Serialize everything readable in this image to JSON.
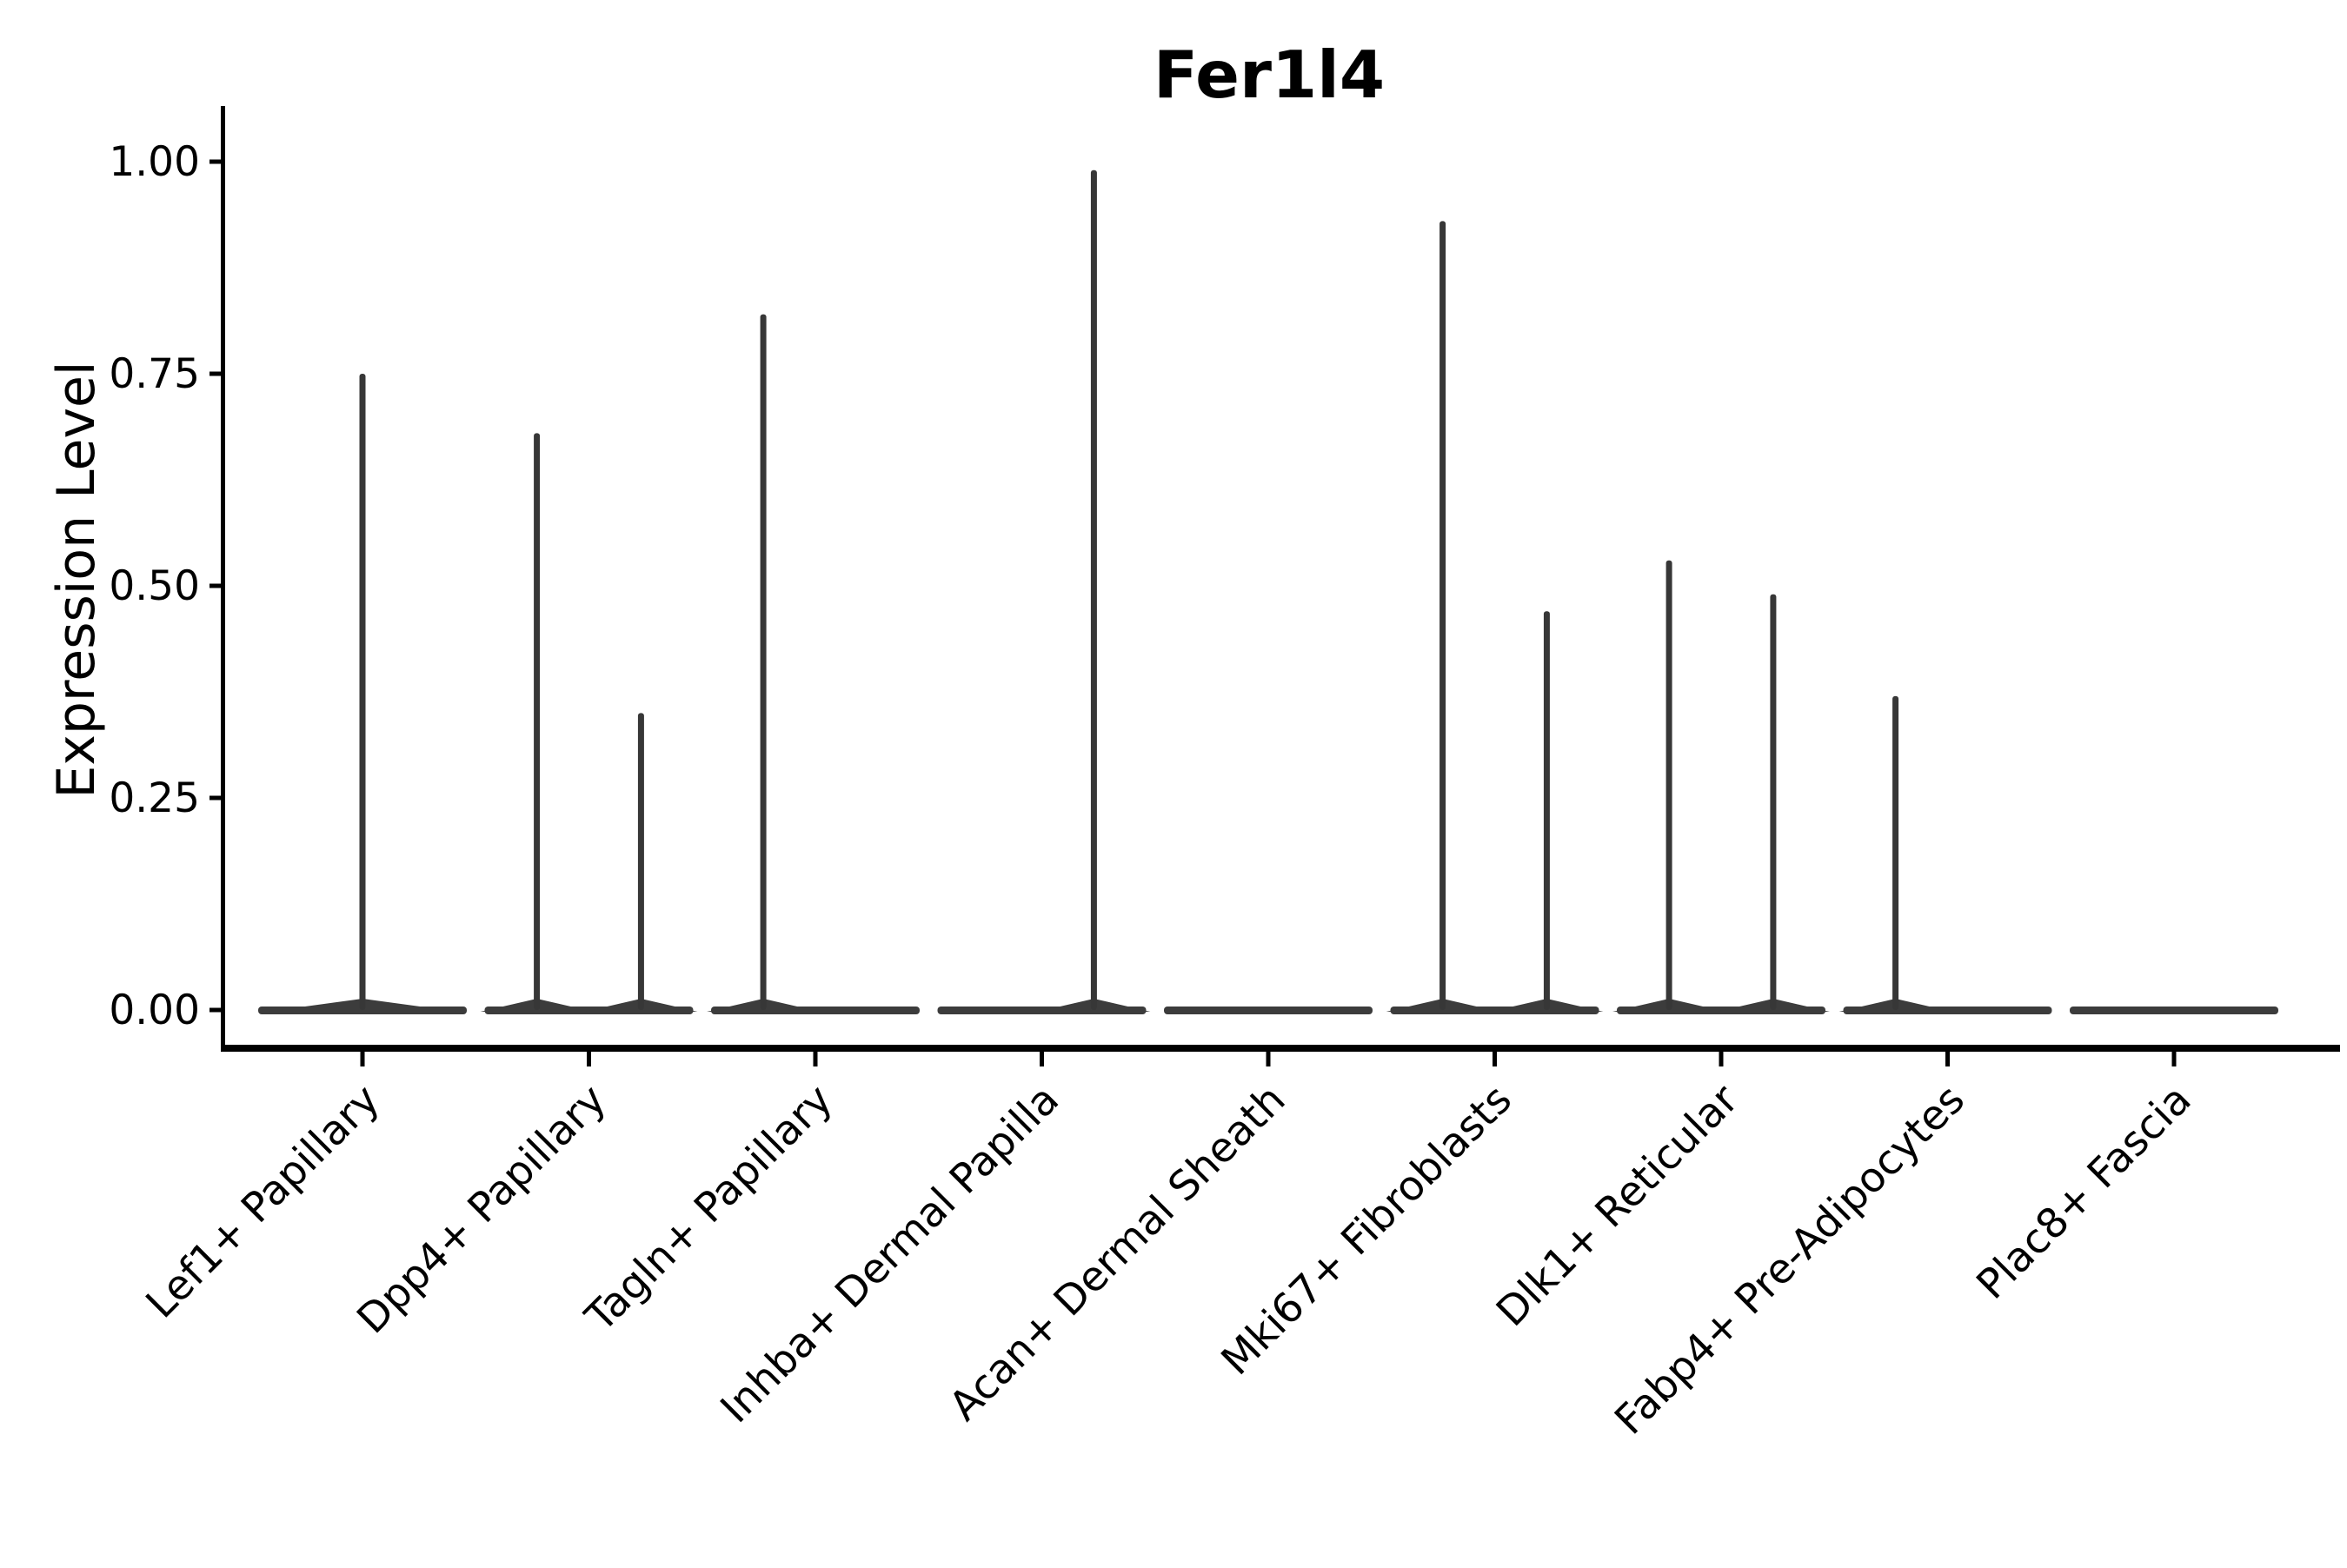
{
  "figure": {
    "background_color": "#ffffff"
  },
  "chart_data": {
    "type": "violin",
    "title": "Fer1l4",
    "xlabel": "",
    "ylabel": "Expression Level",
    "ylim": [
      -0.05,
      1.07
    ],
    "grid": false,
    "legend": "none",
    "yticks": {
      "values": [
        0.0,
        0.25,
        0.5,
        0.75,
        1.0
      ],
      "labels": [
        "0.00",
        "0.25",
        "0.50",
        "0.75",
        "1.00"
      ]
    },
    "categories": [
      "Lef1+ Papillary",
      "Dpp4+ Papillary",
      "Tagln+ Papillary",
      "Inhba+ Dermal Papilla",
      "Acan+ Dermal Sheath",
      "Mki67+ Fibroblasts",
      "Dlk1+ Reticular",
      "Fabp4+ Pre-Adipocytes",
      "Plac8+ Fascia"
    ],
    "violins": [
      {
        "category": "Lef1+ Papillary",
        "base_at": 0.0,
        "spikes": [
          {
            "offset": 0.0,
            "max_expression": 0.75
          }
        ]
      },
      {
        "category": "Dpp4+ Papillary",
        "base_at": 0.0,
        "spikes": [
          {
            "offset": -0.23,
            "max_expression": 0.68
          },
          {
            "offset": 0.23,
            "max_expression": 0.35
          }
        ]
      },
      {
        "category": "Tagln+ Papillary",
        "base_at": 0.0,
        "spikes": [
          {
            "offset": -0.23,
            "max_expression": 0.82
          }
        ]
      },
      {
        "category": "Inhba+ Dermal Papilla",
        "base_at": 0.0,
        "spikes": [
          {
            "offset": 0.23,
            "max_expression": 0.99
          }
        ]
      },
      {
        "category": "Acan+ Dermal Sheath",
        "base_at": 0.0,
        "spikes": []
      },
      {
        "category": "Mki67+ Fibroblasts",
        "base_at": 0.0,
        "spikes": [
          {
            "offset": -0.23,
            "max_expression": 0.93
          },
          {
            "offset": 0.23,
            "max_expression": 0.47
          }
        ]
      },
      {
        "category": "Dlk1+ Reticular",
        "base_at": 0.0,
        "spikes": [
          {
            "offset": -0.23,
            "max_expression": 0.53
          },
          {
            "offset": 0.23,
            "max_expression": 0.49
          }
        ]
      },
      {
        "category": "Fabp4+ Pre-Adipocytes",
        "base_at": 0.0,
        "spikes": [
          {
            "offset": -0.23,
            "max_expression": 0.37
          }
        ]
      },
      {
        "category": "Plac8+ Fascia",
        "base_at": 0.0,
        "spikes": []
      }
    ],
    "colors": {
      "violin_fill": "#3c3c3c",
      "spike": "#373737",
      "axis": "#000000",
      "text": "#000000"
    }
  }
}
